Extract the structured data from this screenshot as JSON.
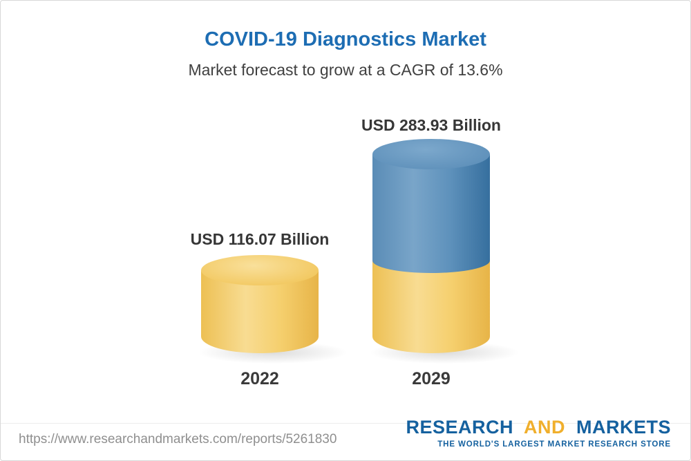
{
  "chart_data": {
    "type": "bar",
    "style": "3d-cylinder",
    "title": "COVID-19 Diagnostics Market",
    "subtitle": "Market forecast to grow at a CAGR of 13.6%",
    "categories": [
      "2022",
      "2029"
    ],
    "values": [
      116.07,
      283.93
    ],
    "unit": "USD Billion",
    "cagr_percent": 13.6,
    "bars": [
      {
        "category": "2022",
        "value": 116.07,
        "label": "USD 116.07 Billion",
        "colors": [
          "#f5cb64"
        ]
      },
      {
        "category": "2029",
        "value": 283.93,
        "label": "USD 283.93 Billion",
        "colors": [
          "#4f82af",
          "#f5cb64"
        ]
      }
    ],
    "legend": false,
    "axes": false
  },
  "footer": {
    "url": "https://www.researchandmarkets.com/reports/5261830",
    "logo": {
      "part1": "RESEARCH",
      "part2": "AND",
      "part3": "MARKETS",
      "tagline": "THE WORLD'S LARGEST MARKET RESEARCH STORE"
    }
  },
  "colors": {
    "title_blue": "#1d6db3",
    "text_dark": "#3a3a3a",
    "bar_yellow": "#f5cb64",
    "bar_blue": "#4f82af",
    "logo_blue": "#15619f",
    "logo_yellow": "#f0af2c",
    "url_gray": "#8f8f8f"
  }
}
